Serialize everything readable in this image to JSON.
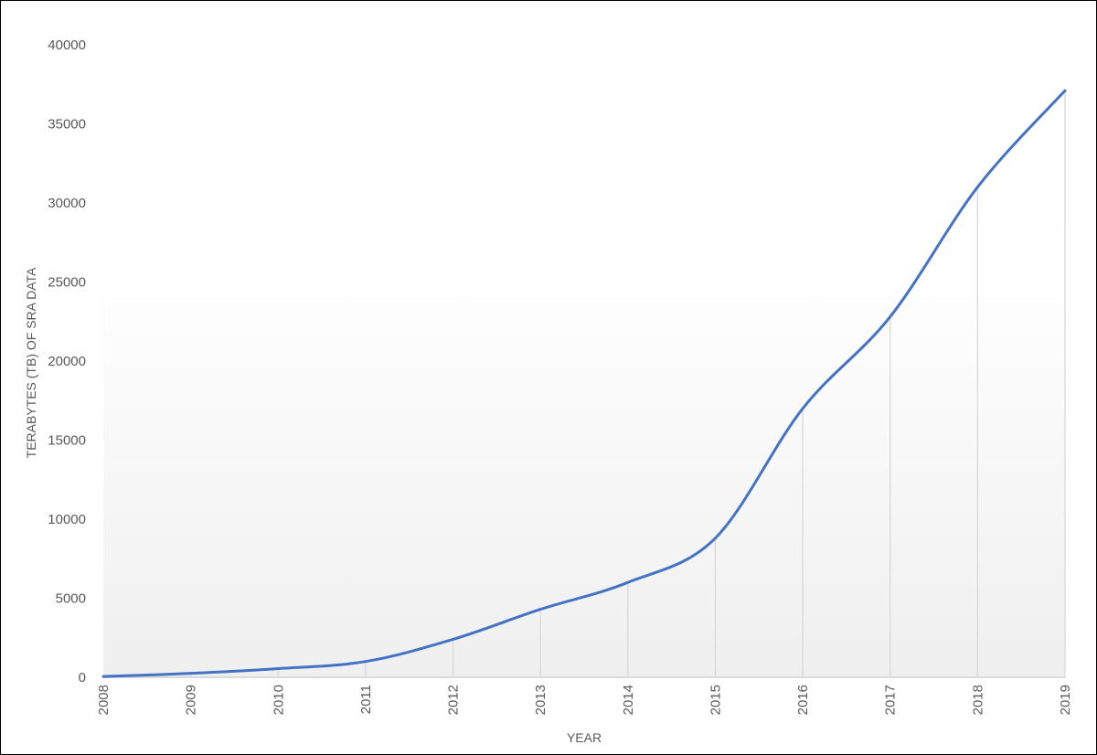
{
  "chart_data": {
    "type": "line",
    "title": "",
    "xlabel": "YEAR",
    "ylabel": "TERABYTES (TB) OF SRA DATA",
    "x": [
      "2008",
      "2009",
      "2010",
      "2011",
      "2012",
      "2013",
      "2014",
      "2015",
      "2016",
      "2017",
      "2018",
      "2019"
    ],
    "series": [
      {
        "values": [
          50,
          250,
          550,
          1000,
          2400,
          4300,
          6000,
          8800,
          17000,
          22800,
          31000,
          37100
        ],
        "color": "#4472c4"
      }
    ],
    "ylim": [
      0,
      40000
    ],
    "yticks": [
      0,
      5000,
      10000,
      15000,
      20000,
      25000,
      30000,
      35000,
      40000
    ],
    "smooth": true,
    "grid": "vertical drop lines at each year",
    "legend": "none",
    "plot_background": "gradient white to light gray"
  }
}
